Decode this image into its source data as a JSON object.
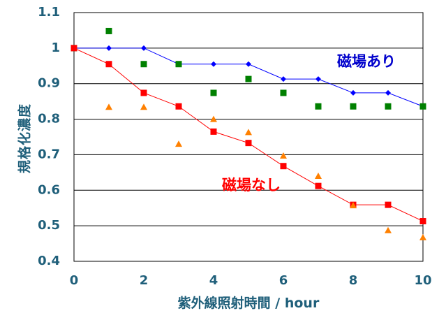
{
  "chart_data": {
    "type": "scatter",
    "xlabel": "紫外線照射時間 / hour",
    "ylabel": "規格化濃度",
    "xlim": [
      0,
      10
    ],
    "ylim": [
      0.4,
      1.1
    ],
    "xticks": [
      "0",
      "2",
      "4",
      "6",
      "8",
      "10"
    ],
    "yticks": [
      "0.4",
      "0.5",
      "0.6",
      "0.7",
      "0.8",
      "0.9",
      "1",
      "1.1"
    ],
    "grid": "horizontal",
    "annotations": [
      {
        "text": "磁場あり",
        "color": "#0000cc"
      },
      {
        "text": "磁場なし",
        "color": "#ff0000"
      }
    ],
    "series": [
      {
        "color": "#0000ff",
        "marker": "diamond",
        "line": true,
        "points": [
          [
            0,
            1.0
          ],
          [
            1,
            1.0
          ],
          [
            2,
            1.0
          ],
          [
            3,
            0.955
          ],
          [
            4,
            0.955
          ],
          [
            5,
            0.955
          ],
          [
            6,
            0.913
          ],
          [
            7,
            0.913
          ],
          [
            8,
            0.874
          ],
          [
            9,
            0.874
          ],
          [
            10,
            0.836
          ]
        ]
      },
      {
        "color": "#008000",
        "marker": "square",
        "line": false,
        "points": [
          [
            0,
            1.0
          ],
          [
            1,
            1.048
          ],
          [
            2,
            0.955
          ],
          [
            3,
            0.955
          ],
          [
            4,
            0.874
          ],
          [
            5,
            0.913
          ],
          [
            6,
            0.874
          ],
          [
            7,
            0.836
          ],
          [
            8,
            0.836
          ],
          [
            9,
            0.836
          ],
          [
            10,
            0.836
          ]
        ]
      },
      {
        "color": "#ff0000",
        "marker": "square",
        "line": true,
        "points": [
          [
            0,
            1.0
          ],
          [
            1,
            0.955
          ],
          [
            2,
            0.874
          ],
          [
            3,
            0.836
          ],
          [
            4,
            0.765
          ],
          [
            5,
            0.733
          ],
          [
            6,
            0.668
          ],
          [
            7,
            0.612
          ],
          [
            8,
            0.559
          ],
          [
            9,
            0.559
          ],
          [
            10,
            0.513
          ]
        ]
      },
      {
        "color": "#ff8000",
        "marker": "triangle",
        "line": false,
        "points": [
          [
            1,
            0.834
          ],
          [
            2,
            0.834
          ],
          [
            3,
            0.73
          ],
          [
            4,
            0.8
          ],
          [
            5,
            0.763
          ],
          [
            6,
            0.697
          ],
          [
            7,
            0.64
          ],
          [
            8,
            0.557
          ],
          [
            9,
            0.487
          ],
          [
            10,
            0.467
          ]
        ]
      }
    ]
  }
}
